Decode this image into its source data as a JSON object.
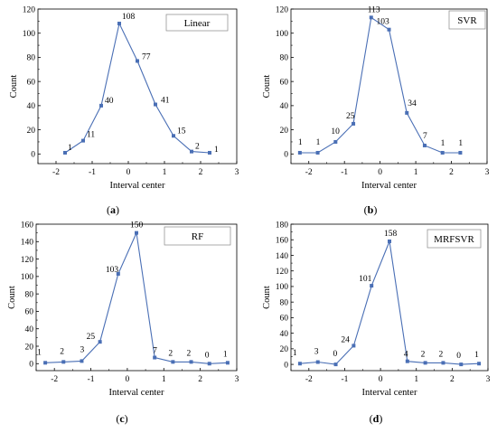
{
  "chart_data": [
    {
      "type": "line",
      "panel": "(a)",
      "panel_letter": "a",
      "legend": "Linear",
      "xlabel": "Interval center",
      "ylabel": "Count",
      "xlim": [
        -2.5,
        3
      ],
      "ylim": [
        -8,
        120
      ],
      "xticks": [
        -2,
        -1,
        0,
        1,
        2,
        3
      ],
      "yticks": [
        0,
        20,
        40,
        60,
        80,
        100,
        120
      ],
      "x": [
        -1.75,
        -1.25,
        -0.75,
        -0.25,
        0.25,
        0.75,
        1.25,
        1.75,
        2.25
      ],
      "values": [
        1,
        11,
        40,
        108,
        77,
        41,
        15,
        2,
        1
      ],
      "labels": [
        "1",
        "11",
        "40",
        "108",
        "77",
        "41",
        "15",
        "2",
        "1"
      ],
      "color": "#4a6fb5"
    },
    {
      "type": "line",
      "panel": "(b)",
      "panel_letter": "b",
      "legend": "SVR",
      "xlabel": "Interval center",
      "ylabel": "Count",
      "xlim": [
        -2.5,
        3
      ],
      "ylim": [
        -8,
        120
      ],
      "xticks": [
        -2,
        -1,
        0,
        1,
        2,
        3
      ],
      "yticks": [
        0,
        20,
        40,
        60,
        80,
        100,
        120
      ],
      "x": [
        -2.25,
        -1.75,
        -1.25,
        -0.75,
        -0.25,
        0.25,
        0.75,
        1.25,
        1.75,
        2.25
      ],
      "values": [
        1,
        1,
        10,
        25,
        113,
        103,
        34,
        7,
        1,
        1
      ],
      "labels": [
        "1",
        "1",
        "10",
        "25",
        "113",
        "103",
        "34",
        "7",
        "1",
        "1"
      ],
      "color": "#4a6fb5"
    },
    {
      "type": "line",
      "panel": "(c)",
      "panel_letter": "c",
      "legend": "RF",
      "xlabel": "Interval center",
      "ylabel": "Count",
      "xlim": [
        -2.5,
        3
      ],
      "ylim": [
        -8,
        160
      ],
      "xticks": [
        -2,
        -1,
        0,
        1,
        2,
        3
      ],
      "yticks": [
        0,
        20,
        40,
        60,
        80,
        100,
        120,
        140,
        160
      ],
      "x": [
        -2.25,
        -1.75,
        -1.25,
        -0.75,
        -0.25,
        0.25,
        0.75,
        1.25,
        1.75,
        2.25,
        2.75
      ],
      "values": [
        1,
        2,
        3,
        25,
        103,
        150,
        7,
        2,
        2,
        0,
        1
      ],
      "labels": [
        "1",
        "2",
        "3",
        "25",
        "103",
        "150",
        "7",
        "2",
        "2",
        "0",
        "1"
      ],
      "color": "#4a6fb5"
    },
    {
      "type": "line",
      "panel": "(d)",
      "panel_letter": "d",
      "legend": "MRFSVR",
      "xlabel": "Interval center",
      "ylabel": "Count",
      "xlim": [
        -2.5,
        3
      ],
      "ylim": [
        -8,
        180
      ],
      "xticks": [
        -2,
        -1,
        0,
        1,
        2,
        3
      ],
      "yticks": [
        0,
        20,
        40,
        60,
        80,
        100,
        120,
        140,
        160,
        180
      ],
      "x": [
        -2.25,
        -1.75,
        -1.25,
        -0.75,
        -0.25,
        0.25,
        0.75,
        1.25,
        1.75,
        2.25,
        2.75
      ],
      "values": [
        1,
        3,
        0,
        24,
        101,
        158,
        4,
        2,
        2,
        0,
        1
      ],
      "labels": [
        "1",
        "3",
        "0",
        "24",
        "101",
        "158",
        "4",
        "2",
        "2",
        "0",
        "1"
      ],
      "color": "#4a6fb5"
    }
  ]
}
